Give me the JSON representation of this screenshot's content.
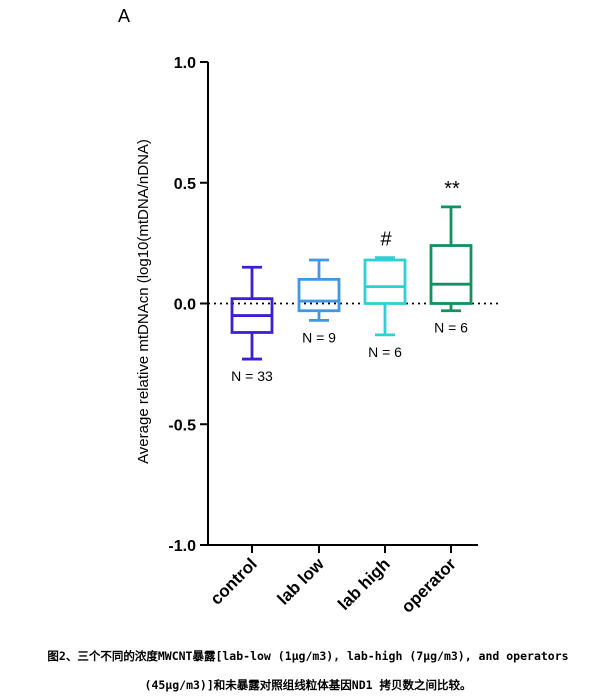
{
  "panel_label": "A",
  "chart_data": {
    "type": "box",
    "ylabel": "Average relative mtDNAcn (log10(mtDNA/nDNA)",
    "xlabel": "",
    "ylim": [
      -1.0,
      1.0
    ],
    "yticks": [
      "1.0",
      "0.5",
      "0.0",
      "-0.5",
      "-1.0"
    ],
    "ytick_values": [
      1.0,
      0.5,
      0.0,
      -0.5,
      -1.0
    ],
    "reference_line": {
      "y": 0.0,
      "style": "dotted"
    },
    "categories": [
      "control",
      "lab low",
      "lab high",
      "operator"
    ],
    "boxes": [
      {
        "name": "control",
        "min": -0.23,
        "q1": -0.12,
        "median": -0.05,
        "q3": 0.02,
        "max": 0.15,
        "n_label": "N = 33",
        "annotation": "",
        "color": "#3a1fd6"
      },
      {
        "name": "lab low",
        "min": -0.07,
        "q1": -0.03,
        "median": 0.01,
        "q3": 0.1,
        "max": 0.18,
        "n_label": "N = 9",
        "annotation": "",
        "color": "#3f97e8"
      },
      {
        "name": "lab high",
        "min": -0.13,
        "q1": 0.0,
        "median": 0.07,
        "q3": 0.18,
        "max": 0.19,
        "n_label": "N = 6",
        "annotation": "#",
        "color": "#2fcfd4"
      },
      {
        "name": "operator",
        "min": -0.03,
        "q1": 0.0,
        "median": 0.08,
        "q3": 0.24,
        "max": 0.4,
        "n_label": "N = 6",
        "annotation": "**",
        "color": "#10915f"
      }
    ]
  },
  "caption": {
    "line1": "图2、三个不同的浓度MWCNT暴露[lab-low (1μg/m3), lab-high (7μg/m3), and operators",
    "line2": "(45μg/m3)]和未暴露对照组线粒体基因ND1 拷贝数之间比较。"
  }
}
